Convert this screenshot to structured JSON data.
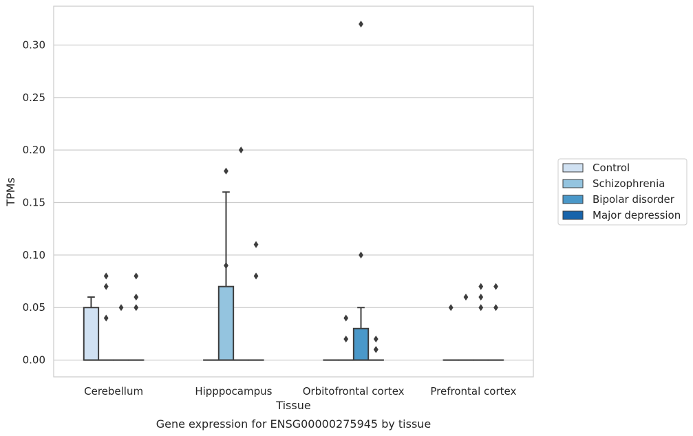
{
  "chart_data": {
    "type": "box",
    "caption": "Gene expression for ENSG00000275945 by tissue",
    "xlabel": "Tissue",
    "ylabel": "TPMs",
    "ylim": [
      -0.016,
      0.337
    ],
    "yticks": [
      "0.00",
      "0.05",
      "0.10",
      "0.15",
      "0.20",
      "0.25",
      "0.30"
    ],
    "ytick_values": [
      0,
      0.05,
      0.1,
      0.15,
      0.2,
      0.25,
      0.3
    ],
    "grid": true,
    "legend_position": "right",
    "categories": [
      "Cerebellum",
      "Hipppocampus",
      "Orbitofrontal cortex",
      "Prefrontal cortex"
    ],
    "series": [
      {
        "name": "Control",
        "color": "#d0e1f2",
        "boxes": [
          {
            "q1": 0,
            "median": 0,
            "q3": 0.05,
            "whisker_low": 0,
            "whisker_high": 0.06,
            "outliers": []
          },
          {
            "q1": 0,
            "median": 0,
            "q3": 0,
            "whisker_low": 0,
            "whisker_high": 0,
            "outliers": []
          },
          {
            "q1": 0,
            "median": 0,
            "q3": 0,
            "whisker_low": 0,
            "whisker_high": 0,
            "outliers": []
          },
          {
            "q1": 0,
            "median": 0,
            "q3": 0,
            "whisker_low": 0,
            "whisker_high": 0,
            "outliers": [
              0.05
            ]
          }
        ]
      },
      {
        "name": "Schizophrenia",
        "color": "#94c4df",
        "boxes": [
          {
            "q1": 0,
            "median": 0,
            "q3": 0,
            "whisker_low": 0,
            "whisker_high": 0,
            "outliers": [
              0.04,
              0.07,
              0.08
            ]
          },
          {
            "q1": 0,
            "median": 0,
            "q3": 0.07,
            "whisker_low": 0,
            "whisker_high": 0.16,
            "outliers": [
              0.18,
              0.09
            ]
          },
          {
            "q1": 0,
            "median": 0,
            "q3": 0,
            "whisker_low": 0,
            "whisker_high": 0,
            "outliers": [
              0.04,
              0.02
            ]
          },
          {
            "q1": 0,
            "median": 0,
            "q3": 0,
            "whisker_low": 0,
            "whisker_high": 0,
            "outliers": [
              0.06
            ]
          }
        ]
      },
      {
        "name": "Bipolar disorder",
        "color": "#4a98c9",
        "boxes": [
          {
            "q1": 0,
            "median": 0,
            "q3": 0,
            "whisker_low": 0,
            "whisker_high": 0,
            "outliers": [
              0.05
            ]
          },
          {
            "q1": 0,
            "median": 0,
            "q3": 0,
            "whisker_low": 0,
            "whisker_high": 0,
            "outliers": [
              0.2
            ]
          },
          {
            "q1": 0,
            "median": 0,
            "q3": 0.03,
            "whisker_low": 0,
            "whisker_high": 0.05,
            "outliers": [
              0.32,
              0.1
            ]
          },
          {
            "q1": 0,
            "median": 0,
            "q3": 0,
            "whisker_low": 0,
            "whisker_high": 0,
            "outliers": [
              0.07,
              0.06,
              0.05
            ]
          }
        ]
      },
      {
        "name": "Major depression",
        "color": "#1764ab",
        "boxes": [
          {
            "q1": 0,
            "median": 0,
            "q3": 0,
            "whisker_low": 0,
            "whisker_high": 0,
            "outliers": [
              0.08,
              0.06,
              0.05
            ]
          },
          {
            "q1": 0,
            "median": 0,
            "q3": 0,
            "whisker_low": 0,
            "whisker_high": 0,
            "outliers": [
              0.11,
              0.08
            ]
          },
          {
            "q1": 0,
            "median": 0,
            "q3": 0,
            "whisker_low": 0,
            "whisker_high": 0,
            "outliers": [
              0.02,
              0.01,
              0.01
            ]
          },
          {
            "q1": 0,
            "median": 0,
            "q3": 0,
            "whisker_low": 0,
            "whisker_high": 0,
            "outliers": [
              0.07,
              0.05
            ]
          }
        ]
      }
    ]
  }
}
